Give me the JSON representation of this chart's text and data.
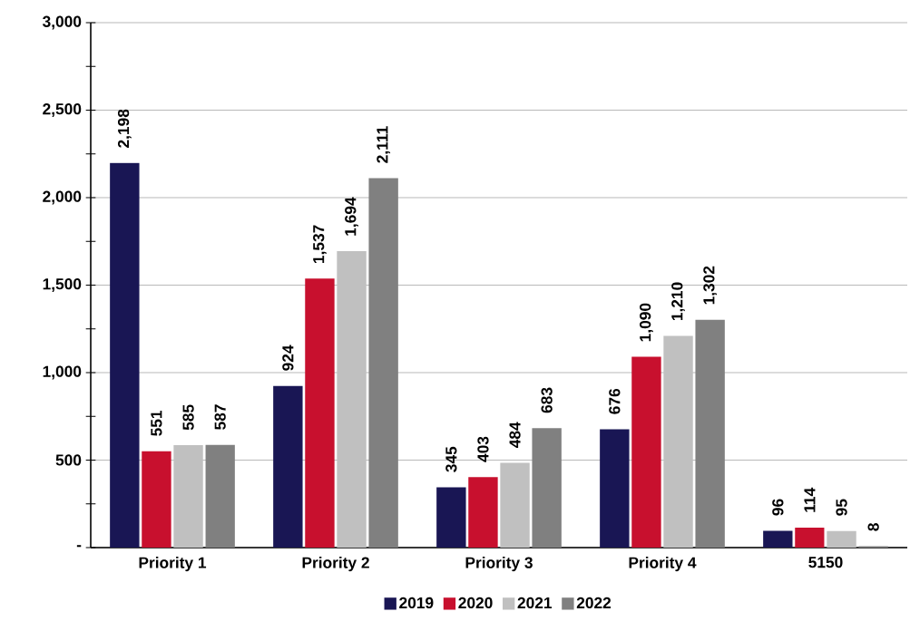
{
  "chart_data": {
    "type": "bar",
    "categories": [
      "Priority 1",
      "Priority 2",
      "Priority 3",
      "Priority 4",
      "5150"
    ],
    "series": [
      {
        "name": "2019",
        "color": "#191654",
        "values": [
          2198,
          924,
          345,
          676,
          96
        ],
        "value_labels": [
          "2,198",
          "924",
          "345",
          "676",
          "96"
        ]
      },
      {
        "name": "2020",
        "color": "#c8102e",
        "values": [
          551,
          1537,
          403,
          1090,
          114
        ],
        "value_labels": [
          "551",
          "1,537",
          "403",
          "1,090",
          "114"
        ]
      },
      {
        "name": "2021",
        "color": "#c0c0c0",
        "values": [
          585,
          1694,
          484,
          1210,
          95
        ],
        "value_labels": [
          "585",
          "1,694",
          "484",
          "1,210",
          "95"
        ]
      },
      {
        "name": "2022",
        "color": "#808080",
        "values": [
          587,
          2111,
          683,
          1302,
          8
        ],
        "value_labels": [
          "587",
          "2,111",
          "683",
          "1,302",
          "8"
        ]
      }
    ],
    "ylim": [
      0,
      3000
    ],
    "yticks": [
      {
        "value": 0,
        "label": "-"
      },
      {
        "value": 500,
        "label": "500"
      },
      {
        "value": 1000,
        "label": "1,000"
      },
      {
        "value": 1500,
        "label": "1,500"
      },
      {
        "value": 2000,
        "label": "2,000"
      },
      {
        "value": 2500,
        "label": "2,500"
      },
      {
        "value": 3000,
        "label": "3,000"
      }
    ],
    "grid": "y",
    "legend": "bottom"
  }
}
